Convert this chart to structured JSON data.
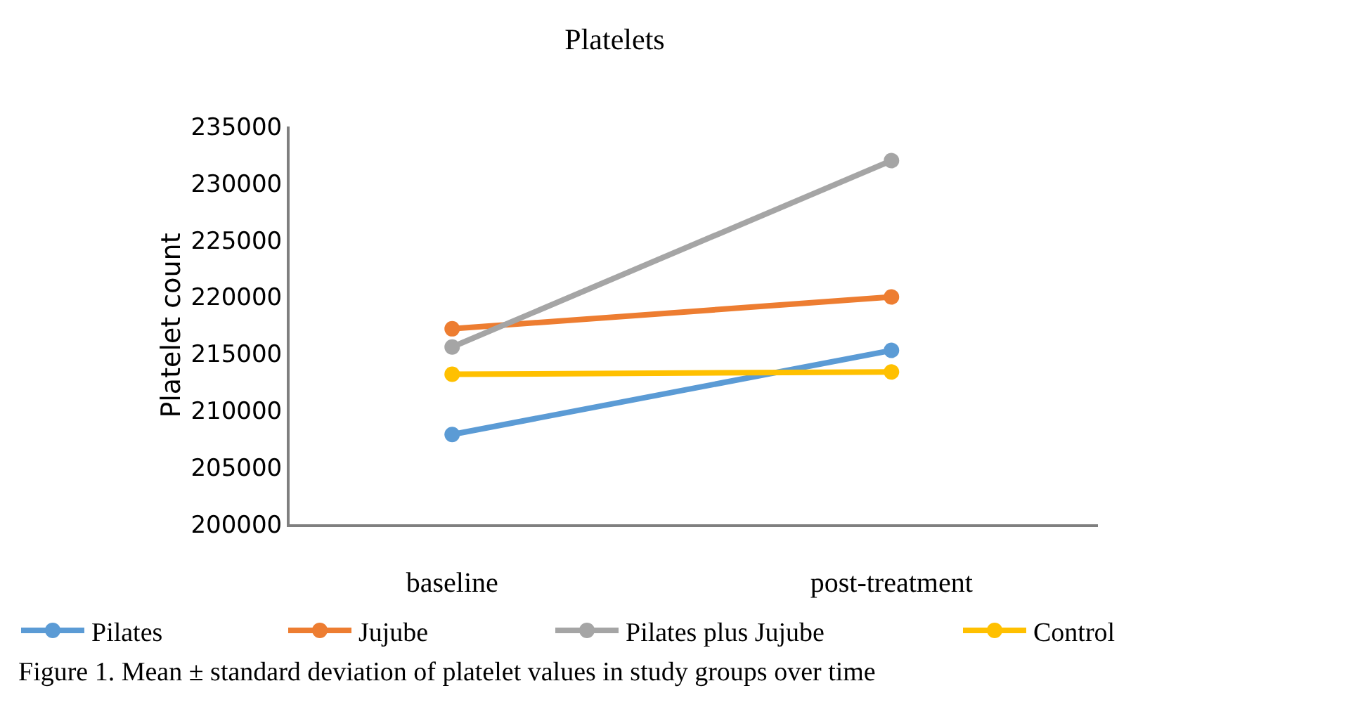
{
  "chart_data": {
    "type": "line",
    "title": "Platelets",
    "ylabel": "Platelet count",
    "categories": [
      "baseline",
      "post-treatment"
    ],
    "series": [
      {
        "name": "Pilates",
        "color": "#5b9bd5",
        "values": [
          207900,
          215300
        ]
      },
      {
        "name": "Jujube",
        "color": "#ed7d31",
        "values": [
          217200,
          220000
        ]
      },
      {
        "name": "Pilates plus Jujube",
        "color": "#a5a5a5",
        "values": [
          215600,
          232000
        ]
      },
      {
        "name": "Control",
        "color": "#ffc000",
        "values": [
          213200,
          213400
        ]
      }
    ],
    "ylim": [
      200000,
      235000
    ],
    "yticks": [
      200000,
      205000,
      210000,
      215000,
      220000,
      225000,
      230000,
      235000
    ],
    "legend": "bottom",
    "marker": "circle",
    "line_style": "solid",
    "annotations": [
      "Figure 1. Mean ± standard deviation of platelet values in study groups over time"
    ]
  }
}
